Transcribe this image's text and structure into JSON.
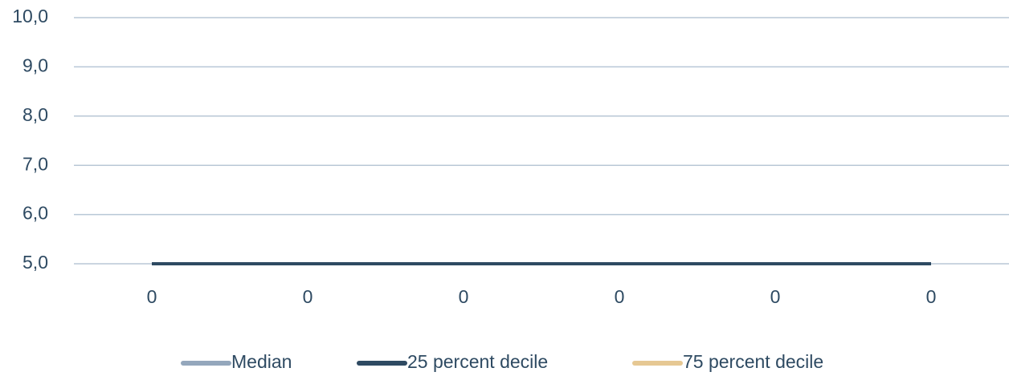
{
  "chart_data": {
    "type": "line",
    "categories": [
      "0",
      "0",
      "0",
      "0",
      "0",
      "0"
    ],
    "series": [
      {
        "name": "Median",
        "color": "#94a7bc",
        "values": [
          5,
          5,
          5,
          5,
          5,
          5
        ]
      },
      {
        "name": "25 percent decile",
        "color": "#2e4a62",
        "values": [
          5,
          5,
          5,
          5,
          5,
          5
        ]
      },
      {
        "name": "75 percent decile",
        "color": "#e6c893",
        "values": [
          5,
          5,
          5,
          5,
          5,
          5
        ]
      }
    ],
    "ylim": [
      5,
      10
    ],
    "yticks": [
      {
        "value": 5,
        "label": "5,0"
      },
      {
        "value": 6,
        "label": "6,0"
      },
      {
        "value": 7,
        "label": "7,0"
      },
      {
        "value": 8,
        "label": "8,0"
      },
      {
        "value": 9,
        "label": "9,0"
      },
      {
        "value": 10,
        "label": "10,0"
      }
    ],
    "grid": true,
    "legend": "bottom"
  }
}
